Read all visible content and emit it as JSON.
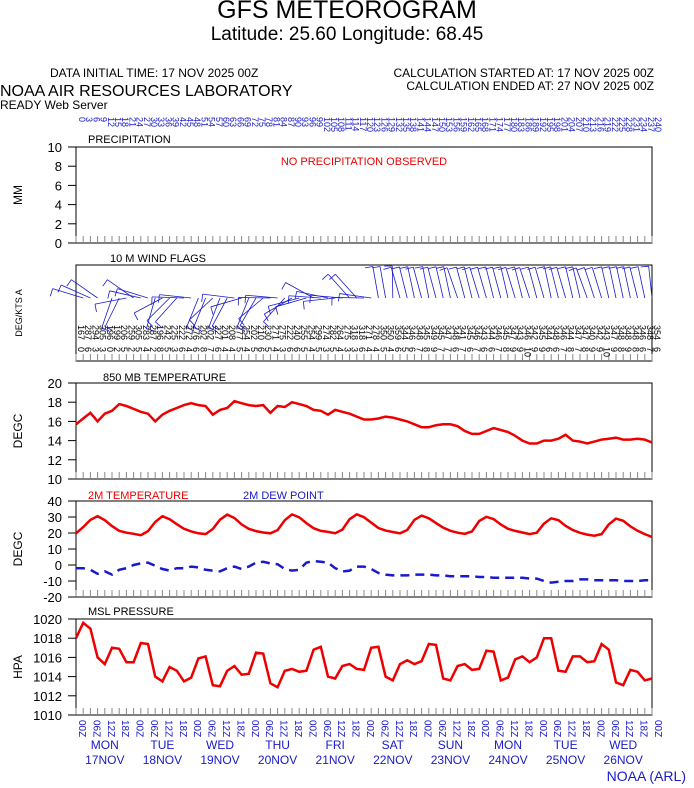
{
  "header": {
    "title": "GFS METEOROGRAM",
    "subtitle": "Latitude: 25.60 Longitude:  68.45",
    "data_initial_time": "DATA INITIAL TIME: 17 NOV 2025 00Z",
    "calc_started": "CALCULATION STARTED AT: 17 NOV 2025 00Z",
    "calc_ended": "CALCULATION ENDED AT: 27 NOV 2025 00Z",
    "lab": "NOAA AIR RESOURCES LABORATORY",
    "server": "READY Web Server"
  },
  "footer": {
    "credit": "NOAA (ARL)"
  },
  "colors": {
    "red": "#ee0000",
    "blue": "#1a1acc",
    "grid": "#888888"
  },
  "chart_data": {
    "top_hours": [
      0,
      3,
      6,
      9,
      12,
      15,
      18,
      21,
      24,
      27,
      30,
      33,
      36,
      39,
      42,
      45,
      48,
      51,
      54,
      57,
      60,
      63,
      66,
      69,
      72,
      75,
      78,
      81,
      84,
      87,
      90,
      93,
      96,
      99,
      102,
      105,
      108,
      111,
      114,
      117,
      120,
      123,
      126,
      129,
      132,
      135,
      138,
      141,
      144,
      147,
      150,
      153,
      156,
      159,
      162,
      165,
      168,
      171,
      174,
      177,
      180,
      183,
      186,
      189,
      192,
      195,
      198,
      201,
      204,
      207,
      210,
      213,
      216,
      219,
      222,
      225,
      228,
      231,
      234,
      237,
      240
    ],
    "bottom_time_labels": [
      "00Z",
      "06Z",
      "12Z",
      "18Z",
      "00Z",
      "06Z",
      "12Z",
      "18Z",
      "00Z",
      "06Z",
      "12Z",
      "18Z",
      "00Z",
      "06Z",
      "12Z",
      "18Z",
      "00Z",
      "06Z",
      "12Z",
      "18Z",
      "00Z",
      "06Z",
      "12Z",
      "18Z",
      "00Z",
      "06Z",
      "12Z",
      "18Z",
      "00Z",
      "06Z",
      "12Z",
      "18Z",
      "00Z",
      "06Z",
      "12Z",
      "18Z",
      "00Z",
      "06Z",
      "12Z",
      "18Z",
      "00Z"
    ],
    "day_labels": [
      {
        "day": "MON",
        "date": "17NOV"
      },
      {
        "day": "TUE",
        "date": "18NOV"
      },
      {
        "day": "WED",
        "date": "19NOV"
      },
      {
        "day": "THU",
        "date": "20NOV"
      },
      {
        "day": "FRI",
        "date": "21NOV"
      },
      {
        "day": "SAT",
        "date": "22NOV"
      },
      {
        "day": "SUN",
        "date": "23NOV"
      },
      {
        "day": "MON",
        "date": "24NOV"
      },
      {
        "day": "TUE",
        "date": "25NOV"
      },
      {
        "day": "WED",
        "date": "26NOV"
      }
    ],
    "panels": [
      {
        "type": "bar",
        "title": "PRECIPITATION",
        "ylabel": "MM",
        "ylim": [
          0,
          10
        ],
        "yticks": [
          0,
          2,
          4,
          6,
          8,
          10
        ],
        "note": "NO PRECIPITATION OBSERVED",
        "values": []
      },
      {
        "type": "wind_flags",
        "title": "10 M  WIND FLAGS",
        "ylabel": "DEG/KTS  A",
        "direction_deg": [
          167,
          287,
          294,
          305,
          196,
          199,
          206,
          259,
          305,
          283,
          287,
          196,
          242,
          225,
          222,
          272,
          276,
          202,
          202,
          227,
          201,
          208,
          277,
          254,
          202,
          210,
          230,
          271,
          275,
          222,
          240,
          255,
          254,
          299,
          274,
          282,
          264,
          275,
          318,
          318,
          271,
          278,
          350,
          350,
          359,
          344,
          346,
          348,
          345,
          349,
          345,
          347,
          348,
          341,
          345,
          346,
          343,
          344,
          346,
          345,
          347,
          343,
          346,
          342,
          345,
          344,
          348,
          346,
          344,
          347,
          347,
          340,
          342,
          343,
          347,
          348,
          348,
          348,
          346,
          348,
          354
        ],
        "speed_kts": [
          0,
          6,
          3,
          3,
          0,
          2,
          5,
          2,
          5,
          4,
          2,
          8,
          5,
          3,
          6,
          4,
          6,
          8,
          7,
          6,
          4,
          4,
          5,
          4,
          5,
          6,
          5,
          4,
          3,
          6,
          6,
          5,
          4,
          5,
          3,
          5,
          4,
          3,
          3,
          6,
          4,
          4,
          5,
          4,
          6,
          5,
          6,
          7,
          8,
          9,
          7,
          7,
          6,
          7,
          6,
          7,
          6,
          6,
          7,
          8,
          9,
          9,
          10,
          9,
          9,
          6,
          6,
          7,
          8,
          7,
          8,
          9,
          9,
          10,
          9,
          8,
          9,
          8,
          6,
          7,
          6
        ]
      },
      {
        "type": "line",
        "title": "850 MB  TEMPERATURE",
        "ylabel": "DEGC",
        "ylim": [
          10,
          20
        ],
        "yticks": [
          10,
          12,
          14,
          16,
          18,
          20
        ],
        "series": [
          {
            "name": "",
            "values": [
              15.7,
              16.3,
              16.9,
              16.0,
              16.8,
              17.1,
              17.8,
              17.6,
              17.3,
              17.0,
              16.8,
              16.0,
              16.7,
              17.1,
              17.4,
              17.7,
              17.9,
              17.7,
              17.6,
              16.7,
              17.2,
              17.4,
              18.1,
              17.9,
              17.7,
              17.6,
              17.7,
              16.9,
              17.6,
              17.5,
              18.0,
              17.8,
              17.6,
              17.2,
              17.1,
              16.7,
              17.2,
              17.0,
              16.8,
              16.5,
              16.2,
              16.2,
              16.3,
              16.5,
              16.4,
              16.2,
              16.0,
              15.7,
              15.4,
              15.4,
              15.6,
              15.7,
              15.7,
              15.5,
              15.0,
              14.7,
              14.7,
              15.0,
              15.3,
              15.1,
              14.9,
              14.5,
              14.0,
              13.7,
              13.7,
              14.0,
              14.0,
              14.2,
              14.6,
              14.0,
              13.9,
              13.7,
              13.9,
              14.1,
              14.2,
              14.3,
              14.1,
              14.1,
              14.2,
              14.1,
              13.8
            ]
          }
        ]
      },
      {
        "type": "line",
        "title": "2M TEMPERATURE",
        "title2": "2M  DEW POINT",
        "ylabel": "DEGC",
        "ylim": [
          -20,
          40
        ],
        "yticks": [
          -20,
          -10,
          0,
          10,
          20,
          30,
          40
        ],
        "series": [
          {
            "name": "2M TEMPERATURE",
            "values": [
              19.8,
              23.7,
              28.2,
              30.5,
              28.0,
              24.3,
              21.4,
              20.2,
              19.5,
              18.6,
              21.2,
              26.9,
              30.5,
              28.6,
              25.5,
              22.6,
              21.0,
              19.8,
              19.3,
              22.5,
              28.3,
              31.5,
              29.4,
              25.4,
              22.6,
              21.2,
              20.3,
              19.8,
              21.8,
              28.0,
              31.6,
              29.8,
              26.2,
              23.0,
              21.3,
              20.7,
              19.9,
              22.1,
              28.6,
              31.7,
              29.9,
              26.5,
              23.1,
              21.5,
              20.6,
              19.8,
              21.9,
              28.2,
              30.9,
              29.2,
              26.2,
              23.3,
              21.4,
              20.2,
              19.5,
              21.0,
              27.5,
              30.1,
              28.7,
              25.3,
              22.6,
              21.3,
              20.3,
              19.3,
              20.2,
              25.9,
              29.2,
              28.0,
              24.5,
              21.8,
              20.1,
              19.0,
              18.3,
              19.3,
              25.4,
              29.0,
              27.6,
              24.1,
              21.4,
              19.3,
              17.5
            ]
          },
          {
            "name": "2M  DEW POINT",
            "values": [
              -2.0,
              -2.0,
              -3.0,
              -5.5,
              -4.0,
              -6.0,
              -3.0,
              -2.0,
              0.0,
              1.0,
              1.5,
              -0.5,
              -2.5,
              -3.5,
              -2.0,
              -2.0,
              -1.0,
              -1.5,
              -3.0,
              -3.5,
              -4.0,
              -2.0,
              -1.0,
              -2.5,
              -1.0,
              1.5,
              2.0,
              1.0,
              0.5,
              -2.5,
              -3.5,
              -3.0,
              1.5,
              2.5,
              2.0,
              1.5,
              -2.0,
              -4.0,
              -3.5,
              -1.0,
              -1.0,
              -2.5,
              -5.0,
              -6.0,
              -6.5,
              -6.5,
              -6.5,
              -6.0,
              -6.0,
              -6.0,
              -6.5,
              -6.5,
              -7.0,
              -7.0,
              -7.0,
              -7.0,
              -7.5,
              -7.5,
              -8.0,
              -8.0,
              -8.0,
              -8.0,
              -8.0,
              -8.5,
              -8.5,
              -10.0,
              -11.0,
              -10.5,
              -10.0,
              -10.0,
              -9.0,
              -9.0,
              -9.5,
              -9.5,
              -9.5,
              -9.5,
              -10.0,
              -10.0,
              -10.0,
              -9.5,
              -9.5
            ]
          }
        ]
      },
      {
        "type": "line",
        "title": "MSL PRESSURE",
        "ylabel": "HPA",
        "ylim": [
          1010,
          1020
        ],
        "yticks": [
          1010,
          1012,
          1014,
          1016,
          1018,
          1020
        ],
        "series": [
          {
            "name": "",
            "values": [
              1018.0,
              1019.6,
              1019.0,
              1016.0,
              1015.3,
              1017.0,
              1016.9,
              1015.5,
              1015.5,
              1017.5,
              1017.4,
              1014.0,
              1013.5,
              1015.0,
              1014.6,
              1013.5,
              1013.9,
              1015.9,
              1016.1,
              1013.1,
              1013.0,
              1014.6,
              1015.1,
              1014.2,
              1014.3,
              1016.5,
              1016.4,
              1013.3,
              1012.9,
              1014.6,
              1014.8,
              1014.5,
              1014.6,
              1016.8,
              1017.1,
              1014.0,
              1013.8,
              1015.1,
              1015.3,
              1014.8,
              1014.7,
              1017.0,
              1017.1,
              1014.0,
              1013.6,
              1015.3,
              1015.7,
              1015.3,
              1015.6,
              1017.4,
              1017.3,
              1013.8,
              1013.6,
              1015.1,
              1015.3,
              1014.7,
              1014.8,
              1016.7,
              1016.6,
              1013.6,
              1013.9,
              1015.8,
              1016.1,
              1015.5,
              1016.0,
              1018.0,
              1018.0,
              1014.6,
              1014.5,
              1016.1,
              1016.1,
              1015.5,
              1015.6,
              1017.4,
              1016.8,
              1013.4,
              1013.1,
              1014.7,
              1014.5,
              1013.6,
              1013.8
            ]
          }
        ]
      }
    ]
  }
}
